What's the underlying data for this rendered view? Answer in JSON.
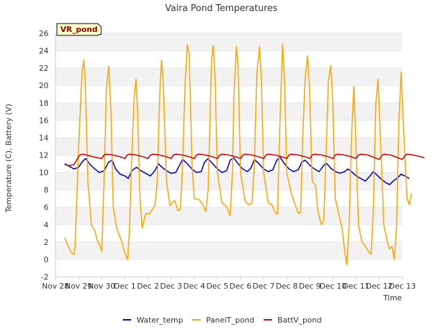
{
  "chart_data": {
    "type": "line",
    "title": "Vaira Pond Temperatures",
    "station_tag": "VR_pond",
    "xlabel": "Time",
    "ylabel": "Temperature (C), Battery (V)",
    "xlim": [
      "Nov 28",
      "Dec 13"
    ],
    "ylim": [
      -2,
      26
    ],
    "x_ticks": [
      "Nov 28",
      "Nov 29",
      "Nov 30",
      "Dec 1",
      "Dec 2",
      "Dec 3",
      "Dec 4",
      "Dec 5",
      "Dec 6",
      "Dec 7",
      "Dec 8",
      "Dec 9",
      "Dec 10",
      "Dec 11",
      "Dec 12",
      "Dec 13"
    ],
    "y_ticks": [
      -2,
      0,
      2,
      4,
      6,
      8,
      10,
      12,
      14,
      16,
      18,
      20,
      22,
      24,
      26
    ],
    "grid": "horizontal bands",
    "legend_position": "bottom",
    "x_unit": "days since Nov 28 00:00",
    "series": [
      {
        "name": "Water_temp",
        "color": "#0000cc",
        "points": [
          [
            0.4,
            11.0
          ],
          [
            0.6,
            10.7
          ],
          [
            0.8,
            10.4
          ],
          [
            1.0,
            10.6
          ],
          [
            1.15,
            11.2
          ],
          [
            1.3,
            11.6
          ],
          [
            1.5,
            10.9
          ],
          [
            1.7,
            10.4
          ],
          [
            1.9,
            10.0
          ],
          [
            2.1,
            10.2
          ],
          [
            2.3,
            11.2
          ],
          [
            2.45,
            11.4
          ],
          [
            2.6,
            10.4
          ],
          [
            2.8,
            9.8
          ],
          [
            3.0,
            9.6
          ],
          [
            3.15,
            9.3
          ],
          [
            3.3,
            10.2
          ],
          [
            3.5,
            10.6
          ],
          [
            3.7,
            10.2
          ],
          [
            3.9,
            9.9
          ],
          [
            4.1,
            9.6
          ],
          [
            4.3,
            10.2
          ],
          [
            4.45,
            11.0
          ],
          [
            4.6,
            10.6
          ],
          [
            4.8,
            10.2
          ],
          [
            5.0,
            9.9
          ],
          [
            5.2,
            10.0
          ],
          [
            5.4,
            11.0
          ],
          [
            5.5,
            11.5
          ],
          [
            5.7,
            11.0
          ],
          [
            5.9,
            10.4
          ],
          [
            6.1,
            10.0
          ],
          [
            6.3,
            10.1
          ],
          [
            6.45,
            11.2
          ],
          [
            6.6,
            11.6
          ],
          [
            6.8,
            11.0
          ],
          [
            7.0,
            10.4
          ],
          [
            7.2,
            10.0
          ],
          [
            7.4,
            10.2
          ],
          [
            7.55,
            11.4
          ],
          [
            7.7,
            11.7
          ],
          [
            7.9,
            11.0
          ],
          [
            8.1,
            10.4
          ],
          [
            8.3,
            10.1
          ],
          [
            8.45,
            10.5
          ],
          [
            8.6,
            11.5
          ],
          [
            8.8,
            11.0
          ],
          [
            9.0,
            10.4
          ],
          [
            9.2,
            10.1
          ],
          [
            9.4,
            10.3
          ],
          [
            9.55,
            11.3
          ],
          [
            9.7,
            11.8
          ],
          [
            9.9,
            11.0
          ],
          [
            10.1,
            10.4
          ],
          [
            10.3,
            10.1
          ],
          [
            10.5,
            10.3
          ],
          [
            10.65,
            11.2
          ],
          [
            10.8,
            11.4
          ],
          [
            11.0,
            10.8
          ],
          [
            11.2,
            10.4
          ],
          [
            11.4,
            10.1
          ],
          [
            11.6,
            10.8
          ],
          [
            11.7,
            11.1
          ],
          [
            11.9,
            10.5
          ],
          [
            12.1,
            10.1
          ],
          [
            12.3,
            9.9
          ],
          [
            12.5,
            10.1
          ],
          [
            12.65,
            10.4
          ],
          [
            12.8,
            10.1
          ],
          [
            13.0,
            9.6
          ],
          [
            13.2,
            9.3
          ],
          [
            13.4,
            9.0
          ],
          [
            13.6,
            9.6
          ],
          [
            13.75,
            10.1
          ],
          [
            13.9,
            9.7
          ],
          [
            14.1,
            9.2
          ],
          [
            14.3,
            8.8
          ],
          [
            14.45,
            8.6
          ],
          [
            14.6,
            9.0
          ],
          [
            14.8,
            9.4
          ],
          [
            14.95,
            9.8
          ],
          [
            15.1,
            9.6
          ],
          [
            15.3,
            9.3
          ]
        ]
      },
      {
        "name": "PanelT_pond",
        "color": "#ffa500",
        "points": [
          [
            0.4,
            2.5
          ],
          [
            0.55,
            1.5
          ],
          [
            0.7,
            0.7
          ],
          [
            0.8,
            0.6
          ],
          [
            0.85,
            1.5
          ],
          [
            1.0,
            13.0
          ],
          [
            1.15,
            21.5
          ],
          [
            1.22,
            22.9
          ],
          [
            1.28,
            21.0
          ],
          [
            1.4,
            9.0
          ],
          [
            1.55,
            4.0
          ],
          [
            1.7,
            3.3
          ],
          [
            1.8,
            2.2
          ],
          [
            1.9,
            1.8
          ],
          [
            2.0,
            0.9
          ],
          [
            2.1,
            9.0
          ],
          [
            2.2,
            19.5
          ],
          [
            2.3,
            22.2
          ],
          [
            2.4,
            17.0
          ],
          [
            2.5,
            6.0
          ],
          [
            2.65,
            3.5
          ],
          [
            2.85,
            2.2
          ],
          [
            3.0,
            0.7
          ],
          [
            3.12,
            0.0
          ],
          [
            3.2,
            3.5
          ],
          [
            3.3,
            12.0
          ],
          [
            3.4,
            18.5
          ],
          [
            3.48,
            20.7
          ],
          [
            3.55,
            17.0
          ],
          [
            3.65,
            7.0
          ],
          [
            3.75,
            3.6
          ],
          [
            3.9,
            5.3
          ],
          [
            4.05,
            5.2
          ],
          [
            4.2,
            5.8
          ],
          [
            4.3,
            6.2
          ],
          [
            4.4,
            9.0
          ],
          [
            4.5,
            18.5
          ],
          [
            4.58,
            22.9
          ],
          [
            4.65,
            21.0
          ],
          [
            4.8,
            9.0
          ],
          [
            4.95,
            6.2
          ],
          [
            5.15,
            6.8
          ],
          [
            5.3,
            5.6
          ],
          [
            5.4,
            5.8
          ],
          [
            5.5,
            11.0
          ],
          [
            5.6,
            20.0
          ],
          [
            5.7,
            24.7
          ],
          [
            5.78,
            23.5
          ],
          [
            5.9,
            11.0
          ],
          [
            6.0,
            7.0
          ],
          [
            6.2,
            6.9
          ],
          [
            6.35,
            6.4
          ],
          [
            6.5,
            5.5
          ],
          [
            6.6,
            8.0
          ],
          [
            6.68,
            16.0
          ],
          [
            6.75,
            23.0
          ],
          [
            6.82,
            24.6
          ],
          [
            6.9,
            21.0
          ],
          [
            7.0,
            10.0
          ],
          [
            7.2,
            6.5
          ],
          [
            7.4,
            6.1
          ],
          [
            7.55,
            5.0
          ],
          [
            7.65,
            10.0
          ],
          [
            7.72,
            19.0
          ],
          [
            7.82,
            24.5
          ],
          [
            7.9,
            22.0
          ],
          [
            8.0,
            10.0
          ],
          [
            8.2,
            6.7
          ],
          [
            8.35,
            6.3
          ],
          [
            8.5,
            6.5
          ],
          [
            8.6,
            11.0
          ],
          [
            8.7,
            21.0
          ],
          [
            8.82,
            24.5
          ],
          [
            8.9,
            21.0
          ],
          [
            9.0,
            10.0
          ],
          [
            9.2,
            6.5
          ],
          [
            9.35,
            6.3
          ],
          [
            9.5,
            5.4
          ],
          [
            9.6,
            5.2
          ],
          [
            9.7,
            15.0
          ],
          [
            9.82,
            24.8
          ],
          [
            9.9,
            21.0
          ],
          [
            10.0,
            10.0
          ],
          [
            10.2,
            7.6
          ],
          [
            10.4,
            6.0
          ],
          [
            10.5,
            5.3
          ],
          [
            10.6,
            5.4
          ],
          [
            10.7,
            15.0
          ],
          [
            10.8,
            21.0
          ],
          [
            10.9,
            23.4
          ],
          [
            10.98,
            20.0
          ],
          [
            11.1,
            9.0
          ],
          [
            11.25,
            8.5
          ],
          [
            11.35,
            5.5
          ],
          [
            11.5,
            4.0
          ],
          [
            11.6,
            4.5
          ],
          [
            11.7,
            12.0
          ],
          [
            11.8,
            20.5
          ],
          [
            11.9,
            22.3
          ],
          [
            11.98,
            19.0
          ],
          [
            12.1,
            7.0
          ],
          [
            12.25,
            5.2
          ],
          [
            12.4,
            3.5
          ],
          [
            12.5,
            1.0
          ],
          [
            12.6,
            -0.6
          ],
          [
            12.7,
            4.0
          ],
          [
            12.8,
            14.0
          ],
          [
            12.9,
            19.9
          ],
          [
            12.97,
            15.0
          ],
          [
            13.1,
            4.0
          ],
          [
            13.25,
            2.0
          ],
          [
            13.4,
            1.5
          ],
          [
            13.55,
            0.8
          ],
          [
            13.65,
            0.6
          ],
          [
            13.75,
            6.0
          ],
          [
            13.85,
            18.0
          ],
          [
            13.95,
            20.7
          ],
          [
            14.05,
            14.0
          ],
          [
            14.2,
            4.0
          ],
          [
            14.35,
            2.0
          ],
          [
            14.45,
            1.2
          ],
          [
            14.55,
            1.5
          ],
          [
            14.65,
            0.0
          ],
          [
            14.75,
            4.0
          ],
          [
            14.85,
            16.0
          ],
          [
            14.95,
            21.5
          ],
          [
            15.05,
            15.0
          ],
          [
            15.2,
            7.0
          ],
          [
            15.3,
            6.3
          ],
          [
            15.4,
            7.6
          ]
        ]
      },
      {
        "name": "BattV_pond",
        "color": "#dd0000",
        "points": [
          [
            0.4,
            10.9
          ],
          [
            0.6,
            10.8
          ],
          [
            0.8,
            10.9
          ],
          [
            0.95,
            11.6
          ],
          [
            1.05,
            12.0
          ],
          [
            1.2,
            12.1
          ],
          [
            1.5,
            11.9
          ],
          [
            1.8,
            11.7
          ],
          [
            2.0,
            11.6
          ],
          [
            2.1,
            12.0
          ],
          [
            2.2,
            12.1
          ],
          [
            2.5,
            12.0
          ],
          [
            2.8,
            11.8
          ],
          [
            3.0,
            11.6
          ],
          [
            3.1,
            12.0
          ],
          [
            3.2,
            12.1
          ],
          [
            3.5,
            12.0
          ],
          [
            3.8,
            11.8
          ],
          [
            4.0,
            11.6
          ],
          [
            4.1,
            12.0
          ],
          [
            4.2,
            12.1
          ],
          [
            4.5,
            12.0
          ],
          [
            4.8,
            11.8
          ],
          [
            5.0,
            11.6
          ],
          [
            5.1,
            12.0
          ],
          [
            5.2,
            12.1
          ],
          [
            5.5,
            12.0
          ],
          [
            5.8,
            11.8
          ],
          [
            6.0,
            11.6
          ],
          [
            6.1,
            12.0
          ],
          [
            6.2,
            12.1
          ],
          [
            6.5,
            12.0
          ],
          [
            6.8,
            11.8
          ],
          [
            7.0,
            11.6
          ],
          [
            7.1,
            12.0
          ],
          [
            7.2,
            12.1
          ],
          [
            7.5,
            12.0
          ],
          [
            7.8,
            11.8
          ],
          [
            8.0,
            11.6
          ],
          [
            8.1,
            12.0
          ],
          [
            8.2,
            12.1
          ],
          [
            8.5,
            12.0
          ],
          [
            8.8,
            11.8
          ],
          [
            9.0,
            11.6
          ],
          [
            9.1,
            12.0
          ],
          [
            9.2,
            12.1
          ],
          [
            9.5,
            12.0
          ],
          [
            9.8,
            11.8
          ],
          [
            10.0,
            11.6
          ],
          [
            10.1,
            12.0
          ],
          [
            10.2,
            12.1
          ],
          [
            10.5,
            12.0
          ],
          [
            10.8,
            11.8
          ],
          [
            11.0,
            11.6
          ],
          [
            11.1,
            12.0
          ],
          [
            11.2,
            12.1
          ],
          [
            11.5,
            12.0
          ],
          [
            11.8,
            11.8
          ],
          [
            12.0,
            11.6
          ],
          [
            12.1,
            12.0
          ],
          [
            12.2,
            12.1
          ],
          [
            12.5,
            12.0
          ],
          [
            12.8,
            11.8
          ],
          [
            13.0,
            11.6
          ],
          [
            13.1,
            12.0
          ],
          [
            13.2,
            12.1
          ],
          [
            13.5,
            12.0
          ],
          [
            13.8,
            11.7
          ],
          [
            14.0,
            11.5
          ],
          [
            14.1,
            11.9
          ],
          [
            14.2,
            12.1
          ],
          [
            14.5,
            12.0
          ],
          [
            14.8,
            11.7
          ],
          [
            15.0,
            11.5
          ],
          [
            15.1,
            11.9
          ],
          [
            15.2,
            12.1
          ],
          [
            15.5,
            12.0
          ],
          [
            15.8,
            11.8
          ],
          [
            15.95,
            11.7
          ]
        ]
      }
    ]
  }
}
